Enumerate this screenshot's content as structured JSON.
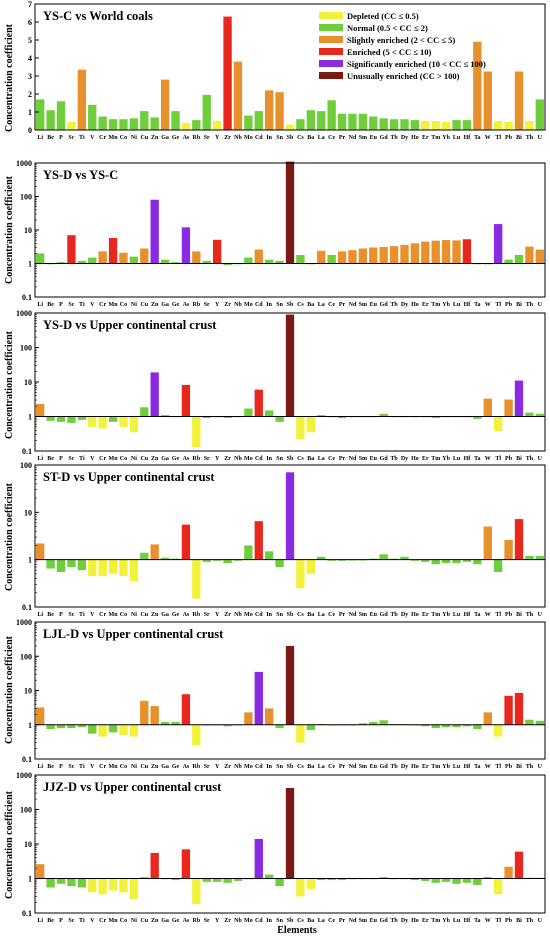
{
  "elements": [
    "Li",
    "Be",
    "P",
    "Sc",
    "Ti",
    "V",
    "Cr",
    "Mn",
    "Co",
    "Ni",
    "Cu",
    "Zn",
    "Ga",
    "Ge",
    "As",
    "Rb",
    "Sr",
    "Y",
    "Zr",
    "Nb",
    "Mo",
    "Cd",
    "In",
    "Sn",
    "Sb",
    "Cs",
    "Ba",
    "La",
    "Ce",
    "Pr",
    "Nd",
    "Sm",
    "Eu",
    "Gd",
    "Tb",
    "Dy",
    "Ho",
    "Er",
    "Tm",
    "Yb",
    "Lu",
    "Hf",
    "Ta",
    "W",
    "Tl",
    "Pb",
    "Bi",
    "Th",
    "U"
  ],
  "xlabel": "Elements",
  "ylabel": "Concentration coefficient",
  "legend": [
    {
      "label": "Depleted (CC ≤ 0.5)",
      "color": "#f2f23a"
    },
    {
      "label": "Normal (0.5 < CC ≤ 2)",
      "color": "#6fcf3a"
    },
    {
      "label": "Slightly enriched (2 < CC ≤ 5)",
      "color": "#e8902c"
    },
    {
      "label": "Enriched (5 < CC ≤ 10)",
      "color": "#e8271f"
    },
    {
      "label": "Significantly enriched (10 < CC ≤ 100)",
      "color": "#8a2be2"
    },
    {
      "label": "Unusually enriched (CC > 100)",
      "color": "#7b1a14"
    }
  ],
  "chart_data": [
    {
      "type": "bar",
      "title": "YS-C vs World coals",
      "scale": "linear",
      "ylim": [
        0,
        7
      ],
      "yticks": [
        "0",
        "1",
        "2",
        "3",
        "4",
        "5",
        "6",
        "7"
      ],
      "categories_ref": "elements",
      "values": [
        1.7,
        1.1,
        1.6,
        0.45,
        3.35,
        1.4,
        0.75,
        0.6,
        0.6,
        0.65,
        1.05,
        0.7,
        2.8,
        1.05,
        0.4,
        0.55,
        1.95,
        0.5,
        6.3,
        3.8,
        0.8,
        1.05,
        2.2,
        2.1,
        0.3,
        0.6,
        1.1,
        1.05,
        1.65,
        0.9,
        0.9,
        0.9,
        0.75,
        0.65,
        0.6,
        0.6,
        0.55,
        0.5,
        0.5,
        0.45,
        0.55,
        0.55,
        4.9,
        3.25,
        0.5,
        0.45,
        3.25,
        0.5,
        1.7
      ]
    },
    {
      "type": "bar",
      "title": "YS-D vs YS-C",
      "scale": "log",
      "ylim": [
        0.1,
        1000
      ],
      "yticks": [
        "0.1",
        "1",
        "10",
        "100",
        "1000"
      ],
      "categories_ref": "elements",
      "values": [
        2.0,
        1.0,
        1.1,
        7.0,
        1.2,
        1.5,
        2.3,
        5.8,
        2.1,
        1.6,
        2.8,
        80,
        1.3,
        1.1,
        12,
        2.3,
        1.2,
        5.1,
        0.9,
        1.0,
        1.5,
        2.6,
        1.3,
        1.2,
        1100,
        1.8,
        1.0,
        2.4,
        1.8,
        2.3,
        2.5,
        2.8,
        3.0,
        3.1,
        3.3,
        3.6,
        4.0,
        4.5,
        4.8,
        5.0,
        4.9,
        5.3,
        1.0,
        1.0,
        15,
        1.3,
        1.8,
        3.2,
        2.6
      ]
    },
    {
      "type": "bar",
      "title": "YS-D vs Upper continental crust",
      "scale": "log",
      "ylim": [
        0.1,
        1000
      ],
      "yticks": [
        "0.1",
        "1",
        "10",
        "100",
        "1000"
      ],
      "categories_ref": "elements",
      "values": [
        2.3,
        0.75,
        0.7,
        0.65,
        0.8,
        0.5,
        0.45,
        0.7,
        0.5,
        0.35,
        1.85,
        19,
        1.1,
        1.0,
        8.2,
        0.13,
        0.9,
        1.0,
        0.9,
        1.0,
        1.7,
        6.0,
        1.5,
        0.7,
        900,
        0.22,
        0.35,
        1.1,
        1.0,
        0.9,
        0.95,
        1.0,
        1.0,
        1.2,
        1.0,
        1.0,
        1.0,
        0.95,
        0.9,
        0.95,
        0.95,
        0.95,
        0.85,
        3.3,
        0.38,
        3.1,
        11,
        1.3,
        1.2
      ]
    },
    {
      "type": "bar",
      "title": "ST-D vs Upper continental crust",
      "scale": "log",
      "ylim": [
        0.1,
        100
      ],
      "yticks": [
        "0.1",
        "1",
        "10",
        "100"
      ],
      "categories_ref": "elements",
      "values": [
        2.2,
        0.65,
        0.55,
        0.7,
        0.6,
        0.45,
        0.45,
        0.5,
        0.45,
        0.35,
        1.4,
        2.1,
        1.1,
        1.05,
        5.5,
        0.15,
        0.9,
        0.95,
        0.85,
        0.95,
        2.0,
        6.5,
        1.5,
        0.7,
        70,
        0.25,
        0.5,
        1.15,
        0.95,
        0.95,
        1.0,
        1.0,
        1.05,
        1.3,
        1.05,
        1.15,
        0.95,
        0.9,
        0.8,
        0.85,
        0.85,
        0.9,
        0.8,
        5.0,
        0.55,
        2.6,
        7.2,
        1.2,
        1.2
      ]
    },
    {
      "type": "bar",
      "title": "LJL-D vs Upper continental crust",
      "scale": "log",
      "ylim": [
        0.1,
        1000
      ],
      "yticks": [
        "0.1",
        "1",
        "10",
        "100",
        "1000"
      ],
      "categories_ref": "elements",
      "values": [
        3.2,
        0.75,
        0.8,
        0.8,
        0.85,
        0.55,
        0.45,
        0.6,
        0.5,
        0.45,
        5.0,
        3.5,
        1.2,
        1.2,
        7.8,
        0.25,
        1.0,
        1.0,
        0.9,
        1.0,
        2.3,
        35,
        3.0,
        0.8,
        200,
        0.3,
        0.7,
        1.05,
        1.0,
        0.95,
        1.0,
        1.1,
        1.2,
        1.35,
        1.05,
        1.05,
        1.0,
        0.9,
        0.8,
        0.85,
        0.85,
        0.9,
        0.75,
        2.3,
        0.45,
        7.0,
        8.5,
        1.4,
        1.3
      ]
    },
    {
      "type": "bar",
      "title": "JJZ-D vs Upper continental crust",
      "scale": "log",
      "ylim": [
        0.1,
        1000
      ],
      "yticks": [
        "0.1",
        "1",
        "10",
        "100",
        "1000"
      ],
      "categories_ref": "elements",
      "values": [
        2.6,
        0.55,
        0.7,
        0.6,
        0.55,
        0.4,
        0.35,
        0.45,
        0.4,
        0.25,
        1.1,
        5.5,
        1.0,
        0.9,
        7.0,
        0.18,
        0.8,
        0.8,
        0.75,
        0.85,
        1.0,
        14,
        1.3,
        0.6,
        420,
        0.3,
        0.5,
        0.9,
        0.9,
        0.9,
        0.95,
        1.0,
        1.0,
        1.1,
        0.95,
        0.95,
        0.9,
        0.85,
        0.75,
        0.8,
        0.7,
        0.75,
        0.65,
        1.1,
        0.35,
        2.2,
        6.0,
        1.05,
        1.05
      ]
    }
  ]
}
